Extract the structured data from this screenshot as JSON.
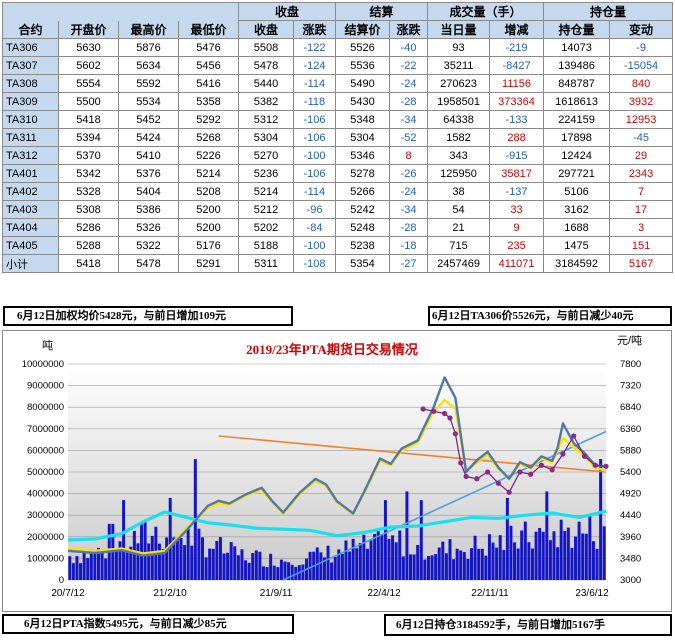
{
  "table": {
    "group_headers": [
      "收盘",
      "结算",
      "成交量（手）",
      "持仓量"
    ],
    "columns": [
      "合约",
      "开盘价",
      "最高价",
      "最低价",
      "收盘",
      "涨跌",
      "结算价",
      "涨跌",
      "当日量",
      "增减",
      "持仓量",
      "变动"
    ],
    "rows": [
      [
        "TA306",
        "5630",
        "5876",
        "5476",
        "5508",
        "-122",
        "5526",
        "-40",
        "93",
        "-219",
        "14073",
        "-9"
      ],
      [
        "TA307",
        "5602",
        "5634",
        "5456",
        "5478",
        "-124",
        "5536",
        "-22",
        "35211",
        "-8427",
        "139486",
        "-15054"
      ],
      [
        "TA308",
        "5554",
        "5592",
        "5416",
        "5440",
        "-114",
        "5490",
        "-24",
        "270623",
        "11156",
        "848787",
        "840"
      ],
      [
        "TA309",
        "5500",
        "5534",
        "5358",
        "5382",
        "-118",
        "5430",
        "-28",
        "1958501",
        "373364",
        "1618613",
        "3932"
      ],
      [
        "TA310",
        "5418",
        "5452",
        "5292",
        "5312",
        "-106",
        "5348",
        "-34",
        "64338",
        "-133",
        "224159",
        "12953"
      ],
      [
        "TA311",
        "5394",
        "5424",
        "5268",
        "5304",
        "-106",
        "5304",
        "-52",
        "1582",
        "288",
        "17898",
        "-45"
      ],
      [
        "TA312",
        "5370",
        "5410",
        "5226",
        "5270",
        "-100",
        "5346",
        "8",
        "343",
        "-915",
        "12424",
        "29"
      ],
      [
        "TA401",
        "5342",
        "5376",
        "5214",
        "5236",
        "-106",
        "5278",
        "-26",
        "125950",
        "35817",
        "297721",
        "2343"
      ],
      [
        "TA402",
        "5328",
        "5404",
        "5208",
        "5214",
        "-114",
        "5266",
        "-24",
        "38",
        "-137",
        "5106",
        "7"
      ],
      [
        "TA403",
        "5308",
        "5386",
        "5200",
        "5212",
        "-96",
        "5242",
        "-34",
        "54",
        "33",
        "3162",
        "17"
      ],
      [
        "TA404",
        "5286",
        "5326",
        "5200",
        "5202",
        "-84",
        "5248",
        "-28",
        "21",
        "9",
        "1688",
        "3"
      ],
      [
        "TA405",
        "5288",
        "5322",
        "5176",
        "5188",
        "-100",
        "5238",
        "-18",
        "715",
        "235",
        "1475",
        "151"
      ],
      [
        "小计",
        "5418",
        "5478",
        "5291",
        "5311",
        "-108",
        "5354",
        "-27",
        "2457469",
        "411071",
        "3184592",
        "5167"
      ]
    ]
  },
  "annotations": {
    "top_left": "6月12日加权均价5428元，与前日增加109元",
    "top_right": "6月12日TA306价5526元，与前日减少40元",
    "bottom_left": "6月12日PTA指数5495元，与前日减少85元",
    "bottom_right": "6月12日持仓3184592手，与前日增加5167手"
  },
  "chart_data": {
    "type": "line",
    "title": "2019/23年PTA期货日交易情况",
    "ylabel_left": "吨",
    "ylabel_right": "元/吨",
    "y_left_ticks": [
      "10000000",
      "9000000",
      "8000000",
      "7000000",
      "6000000",
      "5000000",
      "4000000",
      "3000000",
      "2000000",
      "1000000",
      "0"
    ],
    "y_right_ticks": [
      "7800",
      "7320",
      "6840",
      "6360",
      "5880",
      "5400",
      "4920",
      "4440",
      "3960",
      "3480",
      "3000"
    ],
    "x_ticks": [
      "20/7/12",
      "21/2/10",
      "21/9/11",
      "22/4/12",
      "22/11/11",
      "23/6/12"
    ],
    "ylim_left": [
      0,
      10000000
    ],
    "ylim_right": [
      3000,
      7800
    ],
    "series": [
      {
        "style": "price-steel-blue",
        "axis": "right",
        "x": [
          0,
          5,
          10,
          14,
          18,
          22,
          26,
          28,
          30,
          33,
          36,
          38,
          40,
          43,
          46,
          48,
          50,
          53,
          55,
          58,
          60,
          62,
          65,
          68,
          70,
          72,
          74,
          76,
          78,
          80,
          82,
          84,
          86,
          88,
          90,
          91,
          92,
          94,
          96,
          98,
          100
        ],
        "y": [
          3650,
          3600,
          3660,
          3540,
          3600,
          4100,
          4650,
          4760,
          4700,
          4900,
          5050,
          4750,
          4500,
          4930,
          5250,
          5120,
          4750,
          4480,
          4950,
          5700,
          5580,
          5920,
          6100,
          6850,
          7500,
          7050,
          5400,
          5660,
          5850,
          5500,
          5250,
          5620,
          5500,
          5750,
          5650,
          5940,
          6480,
          6040,
          5820,
          5550,
          5520
        ]
      },
      {
        "style": "weighted-avg-yellow",
        "axis": "right",
        "x": [
          0,
          5,
          10,
          14,
          18,
          22,
          26,
          28,
          30,
          33,
          36,
          38,
          40,
          43,
          46,
          48,
          50,
          53,
          55,
          58,
          60,
          62,
          65,
          68,
          70,
          72,
          74,
          76,
          78,
          80,
          82,
          84,
          86,
          88,
          90,
          91,
          92,
          94,
          96,
          98,
          100
        ],
        "y": [
          3700,
          3650,
          3700,
          3590,
          3650,
          4150,
          4600,
          4700,
          4680,
          4870,
          5000,
          4720,
          4470,
          4900,
          5200,
          5090,
          4730,
          4470,
          4920,
          5650,
          5550,
          5880,
          6050,
          6750,
          7000,
          6800,
          5450,
          5600,
          5800,
          5470,
          5250,
          5580,
          5480,
          5700,
          5620,
          5880,
          6150,
          5950,
          5750,
          5500,
          5430
        ]
      },
      {
        "style": "ta306-purple-dots",
        "axis": "right",
        "x": [
          66,
          68,
          70,
          71,
          72,
          73,
          74,
          76,
          78,
          80,
          82,
          84,
          86,
          88,
          90,
          92,
          94,
          96,
          98,
          100
        ],
        "y": [
          6800,
          6750,
          6700,
          6600,
          6250,
          5600,
          5300,
          5250,
          5400,
          5150,
          4950,
          5400,
          5350,
          5550,
          5450,
          5800,
          6200,
          5750,
          5550,
          5526
        ]
      },
      {
        "style": "open-interest-cyan",
        "axis": "left",
        "x": [
          0,
          5,
          10,
          14,
          18,
          22,
          26,
          30,
          35,
          40,
          45,
          50,
          55,
          60,
          65,
          70,
          75,
          80,
          85,
          90,
          95,
          100
        ],
        "y": [
          1850000,
          1900000,
          2150000,
          2700000,
          3150000,
          2900000,
          2650000,
          2550000,
          2400000,
          2350000,
          2300000,
          2050000,
          2200000,
          2450000,
          2500000,
          2700000,
          2900000,
          2850000,
          3000000,
          3100000,
          2900000,
          3184592
        ]
      }
    ],
    "volume_bars": {
      "style": "volume-blue",
      "axis": "left",
      "count": 150,
      "bases": [
        1200000,
        1500000,
        2400000,
        2100000,
        1300000,
        1000000,
        1200000,
        1600000,
        1900000,
        1500000,
        1700000,
        2100000,
        2400000,
        2457469
      ],
      "peaks": [
        2600000,
        3800000,
        3700000,
        4100000,
        5600000
      ]
    },
    "trendlines": [
      {
        "color": "#f08030",
        "from": [
          28,
          6200
        ],
        "to": [
          100,
          5400
        ]
      },
      {
        "color": "#4aa0e0",
        "from": [
          40,
          3000
        ],
        "to": [
          100,
          6300
        ]
      }
    ]
  }
}
